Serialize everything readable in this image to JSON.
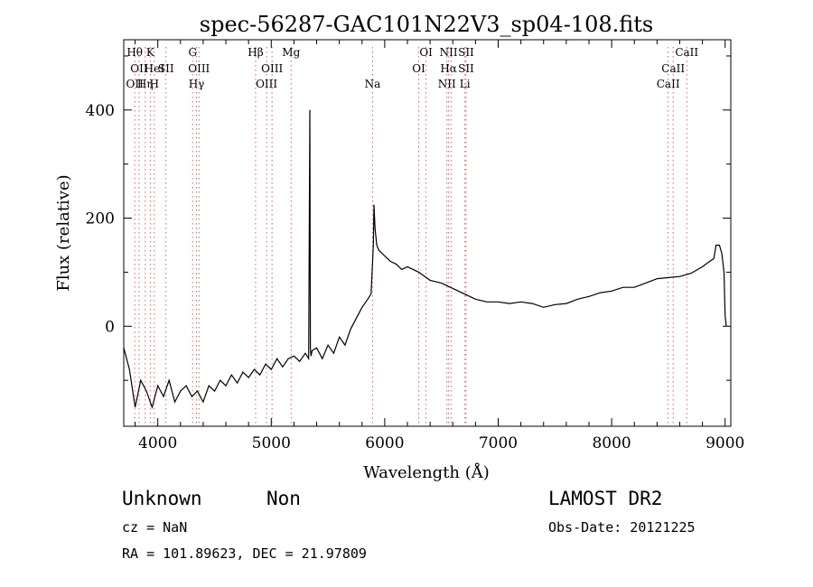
{
  "chart_data": {
    "type": "line",
    "title": "spec-56287-GAC101N22V3_sp04-108.fits",
    "xlabel": "Wavelength (Å)",
    "ylabel": "Flux (relative)",
    "xlim": [
      3700,
      9050
    ],
    "ylim": [
      -185,
      530
    ],
    "x_ticks": [
      4000,
      5000,
      6000,
      7000,
      8000,
      9000
    ],
    "y_ticks": [
      0,
      200,
      400
    ],
    "grid": false,
    "line_color": "#000000",
    "marker_color": "#e06060",
    "series": [
      {
        "x": [
          3700,
          3750,
          3800,
          3850,
          3900,
          3950,
          4000,
          4050,
          4100,
          4150,
          4200,
          4250,
          4300,
          4350,
          4400,
          4450,
          4500,
          4550,
          4600,
          4650,
          4700,
          4750,
          4800,
          4850,
          4900,
          4950,
          5000,
          5050,
          5100,
          5150,
          5200,
          5250,
          5300,
          5330,
          5340,
          5345,
          5350,
          5360,
          5400,
          5450,
          5500,
          5550,
          5600,
          5650,
          5700,
          5750,
          5800,
          5850,
          5880,
          5900,
          5905,
          5915,
          5930,
          5950,
          6000,
          6050,
          6100,
          6150,
          6200,
          6300,
          6400,
          6500,
          6600,
          6700,
          6800,
          6900,
          7000,
          7100,
          7200,
          7300,
          7400,
          7500,
          7600,
          7700,
          7800,
          7900,
          8000,
          8100,
          8200,
          8300,
          8400,
          8500,
          8600,
          8700,
          8800,
          8850,
          8900,
          8920,
          8950,
          8970,
          8990,
          9000,
          9010
        ],
        "y": [
          -40,
          -80,
          -150,
          -100,
          -120,
          -150,
          -110,
          -130,
          -100,
          -140,
          -120,
          -110,
          -130,
          -120,
          -140,
          -110,
          -120,
          -100,
          -110,
          -90,
          -105,
          -85,
          -95,
          -80,
          -90,
          -70,
          -80,
          -60,
          -75,
          -60,
          -55,
          -65,
          -50,
          -60,
          400,
          -40,
          -55,
          -45,
          -40,
          -60,
          -35,
          -50,
          -20,
          -35,
          -5,
          15,
          35,
          50,
          60,
          150,
          225,
          180,
          150,
          140,
          130,
          120,
          115,
          105,
          110,
          100,
          85,
          80,
          70,
          60,
          50,
          45,
          45,
          42,
          45,
          42,
          35,
          40,
          42,
          50,
          55,
          62,
          65,
          72,
          72,
          80,
          88,
          90,
          92,
          98,
          110,
          118,
          125,
          150,
          150,
          135,
          100,
          20,
          0
        ]
      }
    ],
    "lines": [
      {
        "x": 3797,
        "labels": [
          "Hθ",
          "",
          "OII"
        ]
      },
      {
        "x": 3835,
        "labels": [
          "",
          "OII",
          ""
        ]
      },
      {
        "x": 3889,
        "labels": [
          "",
          "",
          "Hη"
        ]
      },
      {
        "x": 3934,
        "labels": [
          "K",
          "",
          ""
        ]
      },
      {
        "x": 3969,
        "labels": [
          "",
          "HeI",
          "H"
        ]
      },
      {
        "x": 4072,
        "labels": [
          "",
          "SII",
          ""
        ]
      },
      {
        "x": 4307,
        "labels": [
          "G",
          "",
          ""
        ]
      },
      {
        "x": 4341,
        "labels": [
          "",
          "",
          "Hγ"
        ]
      },
      {
        "x": 4363,
        "labels": [
          "",
          "OIII",
          ""
        ]
      },
      {
        "x": 4862,
        "labels": [
          "Hβ",
          "",
          ""
        ]
      },
      {
        "x": 4959,
        "labels": [
          "",
          "",
          "OIII"
        ]
      },
      {
        "x": 5007,
        "labels": [
          "",
          "OIII",
          ""
        ]
      },
      {
        "x": 5175,
        "labels": [
          "Mg",
          "",
          ""
        ]
      },
      {
        "x": 5893,
        "labels": [
          "",
          "",
          "Na"
        ]
      },
      {
        "x": 6300,
        "labels": [
          "",
          "OI",
          ""
        ]
      },
      {
        "x": 6364,
        "labels": [
          "OI",
          "",
          ""
        ]
      },
      {
        "x": 6548,
        "labels": [
          "",
          "",
          "NII"
        ]
      },
      {
        "x": 6563,
        "labels": [
          "NII",
          "Hα",
          ""
        ]
      },
      {
        "x": 6584,
        "labels": [
          "",
          "",
          ""
        ]
      },
      {
        "x": 6707,
        "labels": [
          "",
          "",
          "Li"
        ]
      },
      {
        "x": 6717,
        "labels": [
          "SII",
          "SII",
          ""
        ]
      },
      {
        "x": 8498,
        "labels": [
          "",
          "",
          "CaII"
        ]
      },
      {
        "x": 8542,
        "labels": [
          "",
          "CaII",
          ""
        ]
      },
      {
        "x": 8662,
        "labels": [
          "CaII",
          "",
          ""
        ]
      }
    ]
  },
  "info": {
    "class": "Unknown",
    "subclass": "Non",
    "survey": "LAMOST DR2",
    "cz": "cz = NaN",
    "obs_date": "Obs-Date: 20121225",
    "coords": "RA = 101.89623, DEC =  21.97809"
  }
}
